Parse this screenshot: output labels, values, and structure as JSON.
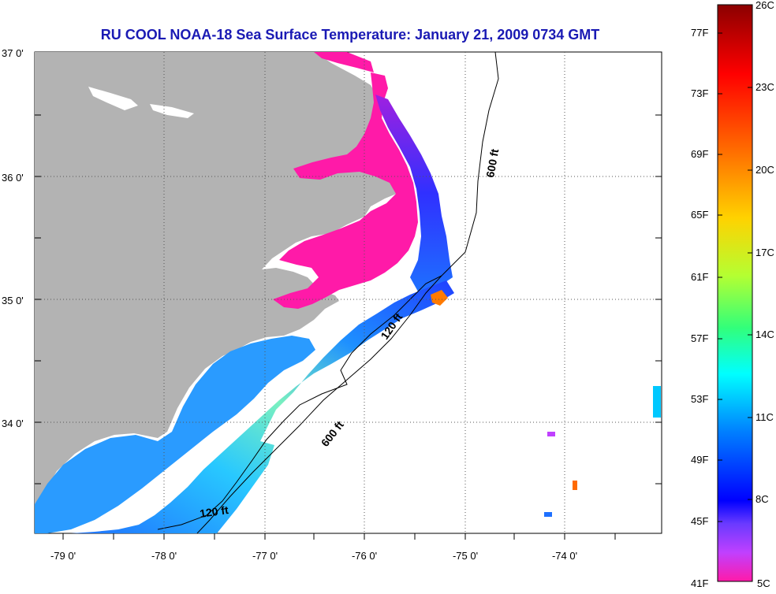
{
  "title": "RU COOL  NOAA-18  Sea Surface Temperature:  January 21, 2009 0734 GMT",
  "latitude_labels": [
    "37 0'",
    "36 0'",
    "35 0'",
    "34 0'"
  ],
  "longitude_labels": [
    "-79 0'",
    "-78 0'",
    "-77 0'",
    "-76 0'",
    "-75 0'",
    "-74 0'"
  ],
  "isobaths": {
    "shallow": "120 ft",
    "deep": "600 ft"
  },
  "colorbar": {
    "fahrenheit": [
      "77F",
      "73F",
      "69F",
      "65F",
      "61F",
      "57F",
      "53F",
      "49F",
      "45F",
      "41F"
    ],
    "celsius": [
      "26C",
      "23C",
      "20C",
      "17C",
      "14C",
      "11C",
      "8C",
      "5C"
    ]
  },
  "colors": {
    "title": "#1a1ab4",
    "land": "#b3b3b3",
    "grid": "#555555"
  }
}
